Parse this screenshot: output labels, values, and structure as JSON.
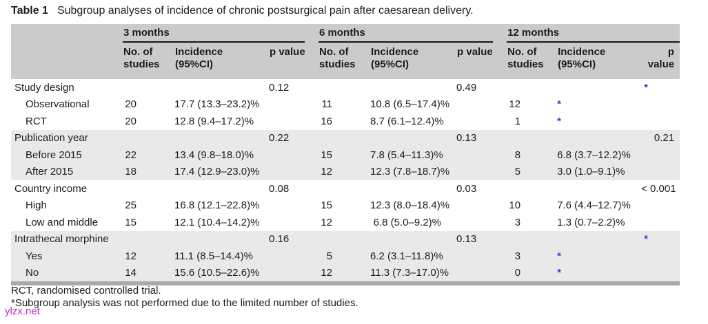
{
  "table": {
    "title_label": "Table 1",
    "title_text": "Subgroup analyses of incidence of chronic postsurgical pain after caesarean delivery.",
    "groups": [
      {
        "label": "3 months"
      },
      {
        "label": "6 months"
      },
      {
        "label": "12 months"
      }
    ],
    "subheaders": {
      "n": "No. of studies",
      "incidence": "Incidence (95%CI)",
      "p": "p value"
    },
    "rows": [
      {
        "label": "Study design",
        "indent": false,
        "shaded": false,
        "n3": "",
        "inc3": "",
        "p3": "0.12",
        "n6": "",
        "inc6": "",
        "p6": "0.49",
        "n12": "",
        "inc12": "",
        "p12": "*"
      },
      {
        "label": "Observational",
        "indent": true,
        "shaded": false,
        "n3": "20",
        "inc3": "17.7 (13.3–23.2)%",
        "p3": "",
        "n6": "11",
        "inc6": "10.8 (6.5–17.4)%",
        "p6": "",
        "n12": "12",
        "inc12": "*",
        "p12": ""
      },
      {
        "label": "RCT",
        "indent": true,
        "shaded": false,
        "n3": "20",
        "inc3": "12.8 (9.4–17.2)%",
        "p3": "",
        "n6": "16",
        "inc6": "8.7 (6.1–12.4)%",
        "p6": "",
        "n12": "1",
        "inc12": "*",
        "p12": ""
      },
      {
        "label": "Publication year",
        "indent": false,
        "shaded": true,
        "n3": "",
        "inc3": "",
        "p3": "0.22",
        "n6": "",
        "inc6": "",
        "p6": "0.13",
        "n12": "",
        "inc12": "",
        "p12": "0.21"
      },
      {
        "label": "Before 2015",
        "indent": true,
        "shaded": true,
        "n3": "22",
        "inc3": "13.4 (9.8–18.0)%",
        "p3": "",
        "n6": "15",
        "inc6": "7.8 (5.4–11.3)%",
        "p6": "",
        "n12": "8",
        "inc12": "6.8 (3.7–12.2)%",
        "p12": ""
      },
      {
        "label": "After 2015",
        "indent": true,
        "shaded": true,
        "n3": "18",
        "inc3": "17.4 (12.9–23.0)%",
        "p3": "",
        "n6": "12",
        "inc6": "12.3 (7.8–18.7)%",
        "p6": "",
        "n12": "5",
        "inc12": "3.0 (1.0–9.1)%",
        "p12": ""
      },
      {
        "label": "Country income",
        "indent": false,
        "shaded": false,
        "n3": "",
        "inc3": "",
        "p3": "0.08",
        "n6": "",
        "inc6": "",
        "p6": "0.03",
        "n12": "",
        "inc12": "",
        "p12": "< 0.001"
      },
      {
        "label": "High",
        "indent": true,
        "shaded": false,
        "n3": "25",
        "inc3": "16.8 (12.1–22.8)%",
        "p3": "",
        "n6": "15",
        "inc6": "12.3 (8.0–18.4)%",
        "p6": "",
        "n12": "10",
        "inc12": "7.6 (4.4–12.7)%",
        "p12": ""
      },
      {
        "label": "Low and middle",
        "indent": true,
        "shaded": false,
        "n3": "15",
        "inc3": "12.1 (10.4–14.2)%",
        "p3": "",
        "n6": "12",
        "inc6": "6.8 (5.0–9.2)%",
        "p6": "",
        "n12": "3",
        "inc12": "1.3 (0.7–2.2)%",
        "p12": ""
      },
      {
        "label": "Intrathecal morphine",
        "indent": false,
        "shaded": true,
        "n3": "",
        "inc3": "",
        "p3": "0.16",
        "n6": "",
        "inc6": "",
        "p6": "0.13",
        "n12": "",
        "inc12": "",
        "p12": "*"
      },
      {
        "label": "Yes",
        "indent": true,
        "shaded": true,
        "n3": "12",
        "inc3": "11.1 (8.5–14.4)%",
        "p3": "",
        "n6": "5",
        "inc6": "6.2 (3.1–11.8)%",
        "p6": "",
        "n12": "3",
        "inc12": "*",
        "p12": ""
      },
      {
        "label": "No",
        "indent": true,
        "shaded": true,
        "n3": "14",
        "inc3": "15.6 (10.5–22.6)%",
        "p3": "",
        "n6": "12",
        "inc6": "11.3 (7.3–17.0)%",
        "p6": "",
        "n12": "0",
        "inc12": "*",
        "p12": ""
      }
    ],
    "footnotes": [
      "RCT, randomised controlled trial.",
      "*Subgroup analysis was not performed due to the limited number of studies."
    ],
    "watermark": "ylzx.net"
  },
  "colors": {
    "header_bg": "#cbcbcb",
    "row_shade_bg": "#e9e9e9",
    "bottom_rule": "#a9a9a9",
    "asterisk_blue": "#3b3be0",
    "watermark_magenta": "#c32bc3",
    "text": "#1c1c1c"
  }
}
